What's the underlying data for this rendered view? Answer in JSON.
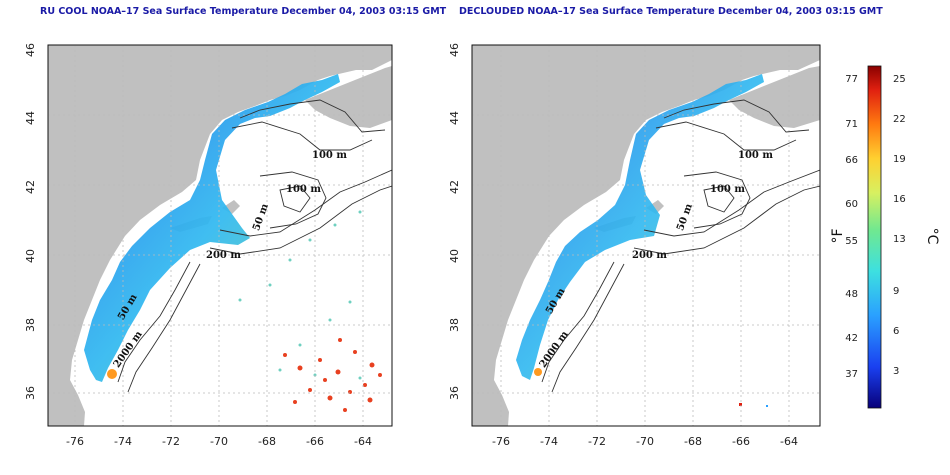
{
  "panels": [
    {
      "title": "RU COOL NOAA–17 Sea Surface Temperature December 04, 2003 03:15 GMT",
      "y_ticks": [
        "46",
        "44",
        "42",
        "40",
        "38",
        "36"
      ],
      "x_ticks": [
        "-76",
        "-74",
        "-72",
        "-70",
        "-68",
        "-66",
        "-64"
      ],
      "contour_labels": [
        "100 m",
        "100 m",
        "50 m",
        "200 m",
        "50 m",
        "2000 m"
      ]
    },
    {
      "title": "DECLOUDED NOAA–17 Sea Surface Temperature December 04, 2003 03:15 GMT",
      "y_ticks": [
        "46",
        "44",
        "42",
        "40",
        "38",
        "36"
      ],
      "x_ticks": [
        "-76",
        "-74",
        "-72",
        "-70",
        "-68",
        "-66",
        "-64"
      ],
      "contour_labels": [
        "100 m",
        "100 m",
        "50 m",
        "200 m",
        "50 m",
        "2000 m"
      ]
    }
  ],
  "colorbar": {
    "fahrenheit_ticks": [
      "77",
      "71",
      "66",
      "60",
      "55",
      "48",
      "42",
      "37"
    ],
    "celsius_ticks": [
      "25",
      "22",
      "19",
      "16",
      "13",
      "9",
      "6",
      "3"
    ],
    "fahrenheit_unit": "°F",
    "celsius_unit": "°C",
    "gradient_colors": [
      "#08007a",
      "#1a40f0",
      "#2aa0ff",
      "#3de0e0",
      "#70e890",
      "#d8f060",
      "#ffd030",
      "#ff7a10",
      "#e02010",
      "#8a0000"
    ]
  },
  "map": {
    "land_color": "#c0c0c0",
    "grid_color": "#bbbbbb",
    "axis_range_lon": [
      -77,
      -63
    ],
    "axis_range_lat": [
      35,
      46
    ]
  }
}
